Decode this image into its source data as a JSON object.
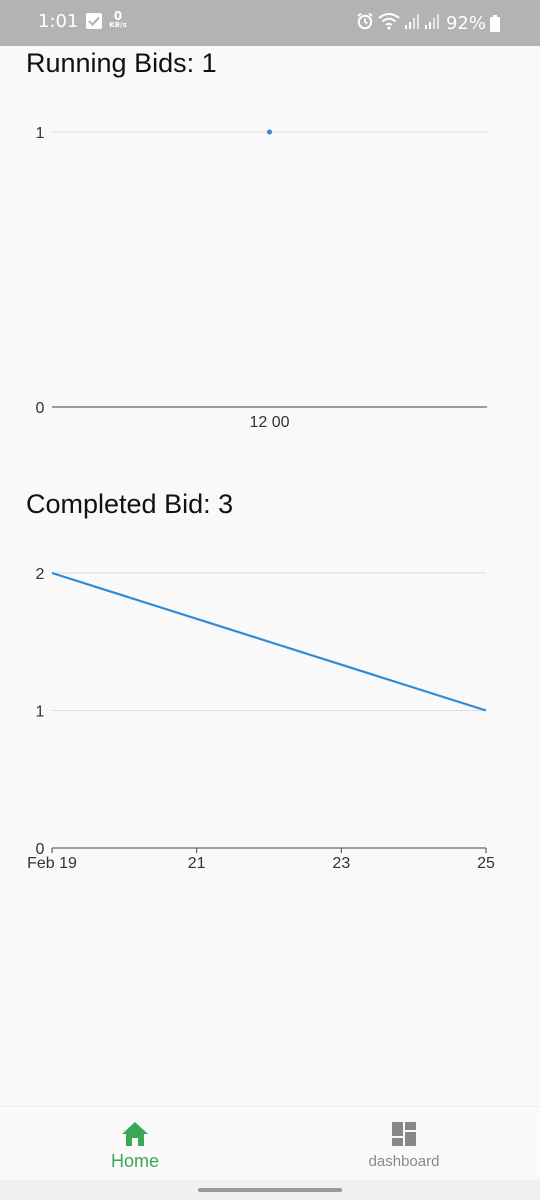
{
  "status_bar": {
    "time": "1:01",
    "network_speed_value": "0",
    "network_speed_unit": "KB/s",
    "battery": "92%",
    "icons": [
      "check-icon",
      "alarm-icon",
      "wifi-icon",
      "signal-icon",
      "signal-icon",
      "battery-icon"
    ]
  },
  "running": {
    "title": "Running Bids: 1"
  },
  "completed": {
    "title": "Completed Bid: 3"
  },
  "chart_data": [
    {
      "type": "scatter",
      "title": "Running Bids: 1",
      "x_tick_labels": [
        "12 00"
      ],
      "y_ticks": [
        0,
        1
      ],
      "ylim": [
        0,
        1
      ],
      "grid": true,
      "series": [
        {
          "x": [
            "12 00"
          ],
          "values": [
            1
          ],
          "color": "#2f8ad8"
        }
      ]
    },
    {
      "type": "line",
      "title": "Completed Bid: 3",
      "x_tick_labels": [
        "Feb 19",
        "21",
        "23",
        "25"
      ],
      "y_ticks": [
        0,
        1,
        2
      ],
      "ylim": [
        0,
        2
      ],
      "grid": true,
      "series": [
        {
          "x": [
            "Feb 19",
            "25"
          ],
          "values": [
            2,
            1
          ],
          "color": "#2f8ad8"
        }
      ]
    }
  ],
  "nav": {
    "home_label": "Home",
    "dashboard_label": "dashboard",
    "active_color": "#3aa757",
    "inactive_color": "#888888"
  }
}
